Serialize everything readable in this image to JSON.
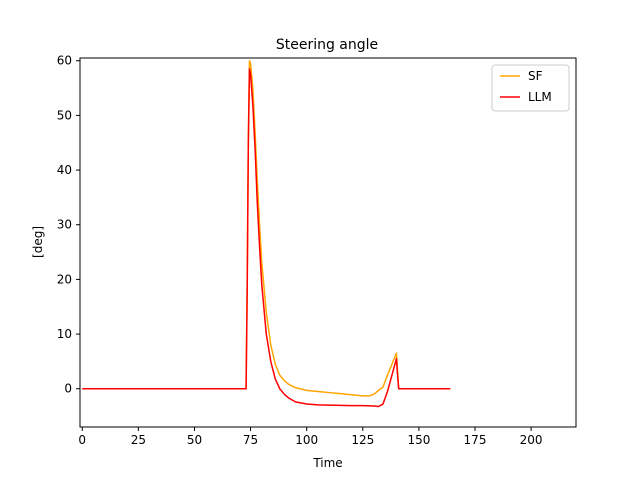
{
  "chart_data": {
    "type": "line",
    "title": "Steering angle",
    "xlabel": "Time",
    "ylabel": "[deg]",
    "xlim": [
      -1,
      220
    ],
    "ylim": [
      -7,
      60.5
    ],
    "xticks": [
      0,
      25,
      50,
      75,
      100,
      125,
      150,
      175,
      200
    ],
    "yticks": [
      0,
      10,
      20,
      30,
      40,
      50,
      60
    ],
    "grid": false,
    "legend": "top-right",
    "series": [
      {
        "name": "SF",
        "color": "#ffa500",
        "x": [
          0,
          73,
          73.5,
          74,
          74.5,
          75,
          76,
          77,
          78,
          79,
          80,
          82,
          84,
          86,
          88,
          90,
          92,
          95,
          100,
          105,
          110,
          115,
          120,
          125,
          128,
          130,
          132,
          134,
          136,
          138,
          140,
          140.5,
          141,
          145,
          150,
          155,
          160,
          164
        ],
        "y": [
          0,
          0,
          20,
          45,
          60,
          59.5,
          55,
          47,
          38,
          30,
          23,
          14,
          8,
          4.5,
          2.5,
          1.5,
          0.8,
          0.2,
          -0.3,
          -0.5,
          -0.7,
          -0.9,
          -1.1,
          -1.3,
          -1.3,
          -1.0,
          -0.3,
          0.3,
          2.5,
          4.5,
          6.5,
          3,
          0,
          0,
          0,
          0,
          0,
          0
        ]
      },
      {
        "name": "LLM",
        "color": "#ff0000",
        "x": [
          0,
          73,
          73.5,
          74,
          74.5,
          75,
          76,
          77,
          78,
          79,
          80,
          82,
          84,
          86,
          88,
          90,
          92,
          95,
          100,
          105,
          110,
          115,
          120,
          125,
          130,
          132,
          134,
          136,
          138,
          140,
          140.5,
          141,
          145,
          150,
          155,
          160,
          164
        ],
        "y": [
          0,
          0,
          18,
          45,
          58.5,
          57.5,
          52,
          44,
          34,
          26,
          19,
          10,
          5,
          1.8,
          0,
          -1,
          -1.7,
          -2.4,
          -2.8,
          -2.95,
          -3.0,
          -3.05,
          -3.1,
          -3.1,
          -3.15,
          -3.25,
          -2.8,
          -0.5,
          2.5,
          5.5,
          2.5,
          0,
          0,
          0,
          0,
          0,
          0
        ]
      }
    ]
  }
}
